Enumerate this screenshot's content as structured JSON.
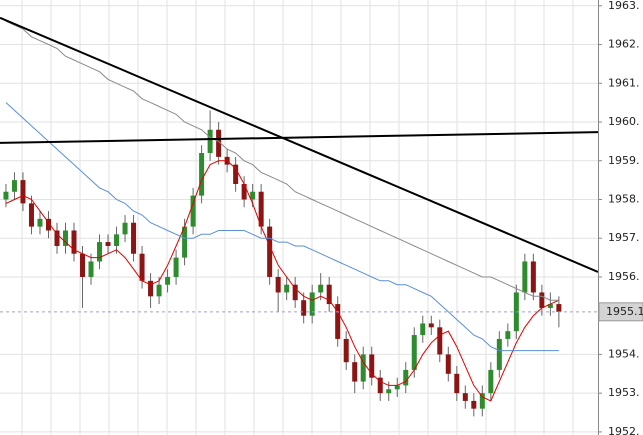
{
  "chart_data": {
    "type": "candlestick",
    "open": [
      1958.0,
      1958.2,
      1958.5,
      1957.9,
      1957.3,
      1957.5,
      1957.2,
      1956.8,
      1957.2,
      1956.6,
      1956.0,
      1956.4,
      1956.9,
      1956.8,
      1957.1,
      1957.4,
      1956.6,
      1955.9,
      1955.5,
      1955.8,
      1956.0,
      1956.5,
      1957.3,
      1958.1,
      1959.2,
      1959.8,
      1959.1,
      1958.9,
      1958.4,
      1958.0,
      1958.2,
      1957.3,
      1956.0,
      1955.6,
      1955.8,
      1955.4,
      1955.0,
      1955.6,
      1955.8,
      1955.3,
      1954.4,
      1953.8,
      1953.3,
      1954.0,
      1953.4,
      1953.0,
      1953.1,
      1953.2,
      1953.6,
      1954.5,
      1954.8,
      1954.7,
      1954.0,
      1953.5,
      1953.0,
      1952.8,
      1952.6,
      1953.0,
      1953.6,
      1954.4,
      1954.6,
      1955.6,
      1956.4,
      1955.6,
      1955.2,
      1955.3
    ],
    "high": [
      1958.4,
      1958.7,
      1958.7,
      1958.1,
      1957.7,
      1957.7,
      1957.4,
      1957.4,
      1957.4,
      1956.8,
      1956.6,
      1957.1,
      1957.1,
      1957.3,
      1957.6,
      1957.6,
      1956.8,
      1956.1,
      1956.0,
      1956.2,
      1956.7,
      1957.5,
      1958.3,
      1959.4,
      1960.3,
      1960.0,
      1959.3,
      1959.1,
      1958.6,
      1958.4,
      1958.4,
      1957.5,
      1956.2,
      1956.0,
      1956.0,
      1955.6,
      1955.8,
      1956.1,
      1956.0,
      1955.5,
      1954.6,
      1954.0,
      1954.2,
      1954.2,
      1953.6,
      1953.3,
      1953.4,
      1953.8,
      1954.7,
      1955.0,
      1955.0,
      1954.9,
      1954.2,
      1953.7,
      1953.2,
      1953.0,
      1953.2,
      1953.8,
      1954.6,
      1954.8,
      1955.8,
      1956.6,
      1956.6,
      1955.8,
      1955.6,
      1955.5
    ],
    "low": [
      1957.8,
      1958.0,
      1957.7,
      1957.1,
      1957.1,
      1957.0,
      1956.6,
      1956.6,
      1956.4,
      1955.2,
      1955.8,
      1956.2,
      1956.6,
      1956.6,
      1956.9,
      1956.4,
      1955.7,
      1955.2,
      1955.3,
      1955.6,
      1955.8,
      1956.3,
      1957.1,
      1957.9,
      1959.0,
      1958.9,
      1958.7,
      1958.2,
      1957.8,
      1957.8,
      1957.1,
      1955.8,
      1955.1,
      1955.4,
      1955.2,
      1954.8,
      1954.8,
      1955.4,
      1955.1,
      1954.2,
      1953.6,
      1953.0,
      1953.1,
      1953.2,
      1952.8,
      1952.8,
      1952.9,
      1953.0,
      1953.4,
      1954.3,
      1954.5,
      1953.8,
      1953.3,
      1952.8,
      1952.6,
      1952.4,
      1952.4,
      1952.8,
      1953.4,
      1954.2,
      1954.4,
      1955.4,
      1955.4,
      1955.0,
      1955.0,
      1954.7
    ],
    "close": [
      1958.2,
      1958.5,
      1957.9,
      1957.3,
      1957.5,
      1957.2,
      1956.8,
      1957.2,
      1956.6,
      1956.0,
      1956.4,
      1956.9,
      1956.8,
      1957.1,
      1957.4,
      1956.6,
      1955.9,
      1955.5,
      1955.8,
      1956.0,
      1956.5,
      1957.3,
      1958.1,
      1959.2,
      1959.8,
      1959.1,
      1958.9,
      1958.4,
      1958.0,
      1958.2,
      1957.3,
      1956.0,
      1955.6,
      1955.8,
      1955.4,
      1955.0,
      1955.6,
      1955.8,
      1955.3,
      1954.4,
      1953.8,
      1953.3,
      1954.0,
      1953.4,
      1953.0,
      1953.1,
      1953.2,
      1953.6,
      1954.5,
      1954.8,
      1954.7,
      1954.0,
      1953.5,
      1953.0,
      1952.8,
      1952.6,
      1953.0,
      1953.6,
      1954.4,
      1954.6,
      1955.6,
      1956.4,
      1955.6,
      1955.2,
      1955.3,
      1955.1
    ],
    "up_color": "#2e8b2e",
    "down_color": "#8b1414",
    "wick_color": "#666666",
    "series": [
      {
        "color": "#e00000",
        "values": [
          1957.9,
          1958.0,
          1958.1,
          1958.0,
          1957.7,
          1957.4,
          1957.1,
          1956.9,
          1956.7,
          1956.6,
          1956.5,
          1956.5,
          1956.6,
          1956.7,
          1956.5,
          1956.2,
          1955.9,
          1955.8,
          1955.9,
          1956.3,
          1956.8,
          1957.3,
          1957.9,
          1958.5,
          1958.9,
          1959.0,
          1959.0,
          1958.8,
          1958.4,
          1957.9,
          1957.3,
          1956.8,
          1956.3,
          1956.0,
          1955.7,
          1955.5,
          1955.4,
          1955.5,
          1955.4,
          1955.1,
          1954.7,
          1954.2,
          1953.8,
          1953.5,
          1953.3,
          1953.2,
          1953.2,
          1953.3,
          1953.6,
          1954.0,
          1954.3,
          1954.5,
          1954.6,
          1954.2,
          1953.7,
          1953.2,
          1952.9,
          1952.8,
          1953.3,
          1953.8,
          1954.3,
          1954.7,
          1955.0,
          1955.2,
          1955.3,
          1955.4
        ]
      },
      {
        "color": "#5b8fd6",
        "values": [
          1960.5,
          1960.3,
          1960.1,
          1959.9,
          1959.7,
          1959.5,
          1959.3,
          1959.1,
          1958.9,
          1958.7,
          1958.5,
          1958.3,
          1958.2,
          1958.0,
          1957.9,
          1957.7,
          1957.6,
          1957.4,
          1957.3,
          1957.2,
          1957.1,
          1957.0,
          1957.0,
          1957.1,
          1957.1,
          1957.2,
          1957.2,
          1957.2,
          1957.2,
          1957.1,
          1957.0,
          1957.0,
          1956.9,
          1956.9,
          1956.8,
          1956.8,
          1956.7,
          1956.6,
          1956.5,
          1956.4,
          1956.3,
          1956.2,
          1956.1,
          1956.0,
          1955.9,
          1955.9,
          1955.8,
          1955.8,
          1955.7,
          1955.6,
          1955.5,
          1955.3,
          1955.1,
          1954.9,
          1954.7,
          1954.5,
          1954.4,
          1954.2,
          1954.1,
          1954.1,
          1954.1,
          1954.1,
          1954.1,
          1954.1,
          1954.1,
          1954.1
        ]
      },
      {
        "color": "#8a8a8a",
        "values": [
          1962.6,
          1962.5,
          1962.4,
          1962.2,
          1962.1,
          1962.0,
          1961.9,
          1961.7,
          1961.6,
          1961.5,
          1961.4,
          1961.3,
          1961.1,
          1961.0,
          1960.9,
          1960.8,
          1960.6,
          1960.5,
          1960.4,
          1960.3,
          1960.2,
          1960.0,
          1959.9,
          1959.8,
          1959.6,
          1959.5,
          1959.3,
          1959.2,
          1959.0,
          1958.9,
          1958.7,
          1958.6,
          1958.5,
          1958.4,
          1958.2,
          1958.1,
          1958.0,
          1957.9,
          1957.8,
          1957.7,
          1957.6,
          1957.5,
          1957.4,
          1957.3,
          1957.2,
          1957.1,
          1957.0,
          1956.9,
          1956.8,
          1956.7,
          1956.6,
          1956.5,
          1956.4,
          1956.3,
          1956.2,
          1956.1,
          1956.0,
          1956.0,
          1955.9,
          1955.8,
          1955.7,
          1955.6,
          1955.5,
          1955.5,
          1955.4,
          1955.4
        ]
      }
    ],
    "trendlines": [
      {
        "color": "#000000",
        "x": [
          -0.7,
          69.6
        ],
        "values": [
          1962.69,
          1956.13
        ]
      },
      {
        "color": "#000000",
        "x": [
          -0.7,
          69.6
        ],
        "values": [
          1959.46,
          1959.74
        ]
      }
    ],
    "last_price": 1955.1,
    "xlim": [
      -0.7,
      69.6
    ],
    "ylim": [
      1951.92,
      1963.15
    ],
    "yticks": [
      {
        "value": 1952,
        "label": "1952."
      },
      {
        "value": 1953,
        "label": "1953."
      },
      {
        "value": 1954,
        "label": "1954."
      },
      {
        "value": 1956,
        "label": "1956."
      },
      {
        "value": 1957,
        "label": "1957."
      },
      {
        "value": 1958,
        "label": "1958."
      },
      {
        "value": 1959,
        "label": "1959."
      },
      {
        "value": 1960,
        "label": "1960."
      },
      {
        "value": 1961,
        "label": "1961."
      },
      {
        "value": 1962,
        "label": "1962."
      },
      {
        "value": 1963,
        "label": "1963."
      }
    ],
    "grid": true
  }
}
